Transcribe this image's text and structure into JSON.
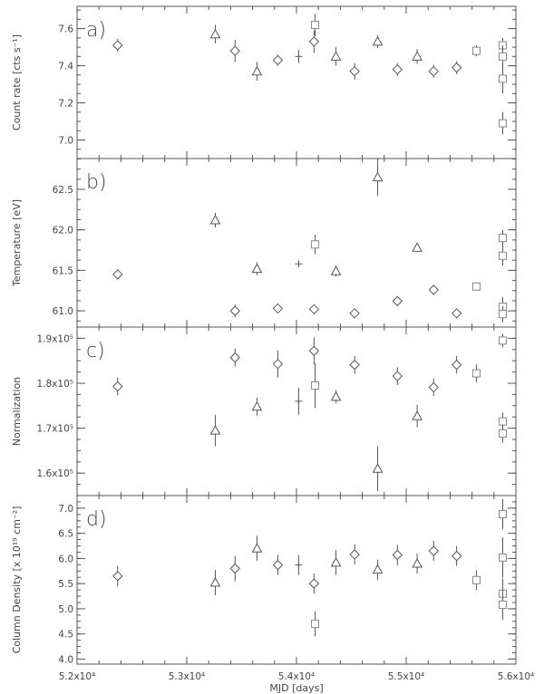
{
  "chart_data": [
    {
      "type": "scatter",
      "panel_label": "a)",
      "ylabel": "Count rate [cts s⁻¹]",
      "ylim": [
        6.9,
        7.72
      ],
      "yticks": [
        7.0,
        7.2,
        7.4,
        7.6
      ],
      "ytick_labels": [
        "7.0",
        "7.2",
        "7.4",
        "7.6"
      ],
      "series": [
        {
          "marker": "diamond",
          "points": [
            {
              "x": 52370,
              "y": 7.51,
              "err": 0.035
            },
            {
              "x": 53440,
              "y": 7.48,
              "err": 0.06
            },
            {
              "x": 53830,
              "y": 7.43,
              "err": 0.03
            },
            {
              "x": 54160,
              "y": 7.53,
              "err": 0.06
            },
            {
              "x": 54530,
              "y": 7.37,
              "err": 0.045
            },
            {
              "x": 54920,
              "y": 7.38,
              "err": 0.035
            },
            {
              "x": 55250,
              "y": 7.37,
              "err": 0.035
            },
            {
              "x": 55460,
              "y": 7.39,
              "err": 0.035
            }
          ]
        },
        {
          "marker": "triangle",
          "points": [
            {
              "x": 53260,
              "y": 7.57,
              "err": 0.05
            },
            {
              "x": 53640,
              "y": 7.37,
              "err": 0.05
            },
            {
              "x": 54360,
              "y": 7.45,
              "err": 0.05
            },
            {
              "x": 54740,
              "y": 7.53,
              "err": 0.035
            },
            {
              "x": 55100,
              "y": 7.45,
              "err": 0.04
            }
          ]
        },
        {
          "marker": "plus",
          "points": [
            {
              "x": 54020,
              "y": 7.45,
              "err": 0.035
            }
          ]
        },
        {
          "marker": "square",
          "points": [
            {
              "x": 54170,
              "y": 7.62,
              "err": 0.06
            },
            {
              "x": 55640,
              "y": 7.48,
              "err": 0.03
            },
            {
              "x": 55880,
              "y": 7.51,
              "err": 0.04
            },
            {
              "x": 55880,
              "y": 7.45,
              "err": 0.06
            },
            {
              "x": 55880,
              "y": 7.33,
              "err": 0.08
            },
            {
              "x": 55880,
              "y": 7.09,
              "err": 0.06
            }
          ]
        }
      ]
    },
    {
      "type": "scatter",
      "panel_label": "b)",
      "ylabel": "Temperature [eV]",
      "ylim": [
        60.8,
        62.88
      ],
      "yticks": [
        61.0,
        61.5,
        62.0,
        62.5
      ],
      "ytick_labels": [
        "61.0",
        "61.5",
        "62.0",
        "62.5"
      ],
      "series": [
        {
          "marker": "diamond",
          "points": [
            {
              "x": 52370,
              "y": 61.45,
              "err": 0.04
            },
            {
              "x": 53440,
              "y": 61.0,
              "err": 0.08
            },
            {
              "x": 53830,
              "y": 61.03,
              "err": 0.05
            },
            {
              "x": 54160,
              "y": 61.02,
              "err": 0.05
            },
            {
              "x": 54530,
              "y": 60.97,
              "err": 0.05
            },
            {
              "x": 54920,
              "y": 61.12,
              "err": 0.04
            },
            {
              "x": 55250,
              "y": 61.26,
              "err": 0.03
            },
            {
              "x": 55460,
              "y": 60.97,
              "err": 0.04
            }
          ]
        },
        {
          "marker": "triangle",
          "points": [
            {
              "x": 53260,
              "y": 62.12,
              "err": 0.09
            },
            {
              "x": 53640,
              "y": 61.52,
              "err": 0.08
            },
            {
              "x": 54360,
              "y": 61.49,
              "err": 0.07
            },
            {
              "x": 54740,
              "y": 62.65,
              "err": 0.23
            },
            {
              "x": 55100,
              "y": 61.78,
              "err": 0.05
            }
          ]
        },
        {
          "marker": "plus",
          "points": [
            {
              "x": 54020,
              "y": 61.58,
              "err": 0.04
            }
          ]
        },
        {
          "marker": "square",
          "points": [
            {
              "x": 54170,
              "y": 61.82,
              "err": 0.12
            },
            {
              "x": 55640,
              "y": 61.3,
              "err": 0.05
            },
            {
              "x": 55880,
              "y": 61.9,
              "err": 0.1
            },
            {
              "x": 55880,
              "y": 61.68,
              "err": 0.12
            },
            {
              "x": 55880,
              "y": 61.05,
              "err": 0.12
            },
            {
              "x": 55880,
              "y": 60.96,
              "err": 0.1
            }
          ]
        }
      ]
    },
    {
      "type": "scatter",
      "panel_label": "c)",
      "ylabel": "Normalization",
      "ylim": [
        1.55,
        1.925
      ],
      "yticks": [
        1.6,
        1.7,
        1.8,
        1.9
      ],
      "ytick_labels": [
        "1.6x10⁵",
        "1.7x10⁵",
        "1.8x10⁵",
        "1.9x10⁵"
      ],
      "series": [
        {
          "marker": "diamond",
          "points": [
            {
              "x": 52370,
              "y": 1.793,
              "err": 0.02
            },
            {
              "x": 53440,
              "y": 1.857,
              "err": 0.02
            },
            {
              "x": 53830,
              "y": 1.843,
              "err": 0.03
            },
            {
              "x": 54160,
              "y": 1.872,
              "err": 0.03
            },
            {
              "x": 54530,
              "y": 1.841,
              "err": 0.02
            },
            {
              "x": 54920,
              "y": 1.816,
              "err": 0.02
            },
            {
              "x": 55250,
              "y": 1.791,
              "err": 0.02
            },
            {
              "x": 55460,
              "y": 1.841,
              "err": 0.02
            }
          ]
        },
        {
          "marker": "triangle",
          "points": [
            {
              "x": 53260,
              "y": 1.695,
              "err": 0.035
            },
            {
              "x": 53640,
              "y": 1.748,
              "err": 0.02
            },
            {
              "x": 54360,
              "y": 1.77,
              "err": 0.015
            },
            {
              "x": 54740,
              "y": 1.61,
              "err": 0.05
            },
            {
              "x": 55100,
              "y": 1.727,
              "err": 0.025
            }
          ]
        },
        {
          "marker": "plus",
          "points": [
            {
              "x": 54020,
              "y": 1.76,
              "err": 0.03
            }
          ]
        },
        {
          "marker": "square",
          "points": [
            {
              "x": 54170,
              "y": 1.795,
              "err": 0.05
            },
            {
              "x": 55640,
              "y": 1.822,
              "err": 0.02
            },
            {
              "x": 55880,
              "y": 1.895,
              "err": 0.015
            },
            {
              "x": 55880,
              "y": 1.715,
              "err": 0.02
            },
            {
              "x": 55880,
              "y": 1.688,
              "err": 0.02
            }
          ]
        }
      ]
    },
    {
      "type": "scatter",
      "panel_label": "d)",
      "ylabel": "Column Density [x 10¹⁹ cm⁻²]",
      "xlabel": "MJD [days]",
      "ylim": [
        3.9,
        7.25
      ],
      "yticks": [
        4.0,
        4.5,
        5.0,
        5.5,
        6.0,
        6.5,
        7.0
      ],
      "ytick_labels": [
        "4.0",
        "4.5",
        "5.0",
        "5.5",
        "6.0",
        "6.5",
        "7.0"
      ],
      "xlim": [
        52000,
        56000
      ],
      "xticks": [
        52000,
        53000,
        54000,
        55000,
        56000
      ],
      "xtick_labels": [
        "5.2x10⁴",
        "5.3x10⁴",
        "5.4x10⁴",
        "5.5x10⁴",
        "5.6x10⁴"
      ],
      "series": [
        {
          "marker": "diamond",
          "points": [
            {
              "x": 52370,
              "y": 5.65,
              "err": 0.2
            },
            {
              "x": 53440,
              "y": 5.8,
              "err": 0.25
            },
            {
              "x": 53830,
              "y": 5.87,
              "err": 0.2
            },
            {
              "x": 54160,
              "y": 5.5,
              "err": 0.2
            },
            {
              "x": 54530,
              "y": 6.08,
              "err": 0.2
            },
            {
              "x": 54920,
              "y": 6.07,
              "err": 0.2
            },
            {
              "x": 55250,
              "y": 6.15,
              "err": 0.2
            },
            {
              "x": 55460,
              "y": 6.05,
              "err": 0.2
            }
          ]
        },
        {
          "marker": "triangle",
          "points": [
            {
              "x": 53260,
              "y": 5.52,
              "err": 0.25
            },
            {
              "x": 53640,
              "y": 6.2,
              "err": 0.25
            },
            {
              "x": 54360,
              "y": 5.92,
              "err": 0.25
            },
            {
              "x": 54740,
              "y": 5.78,
              "err": 0.2
            },
            {
              "x": 55100,
              "y": 5.9,
              "err": 0.2
            }
          ]
        },
        {
          "marker": "plus",
          "points": [
            {
              "x": 54020,
              "y": 5.87,
              "err": 0.2
            }
          ]
        },
        {
          "marker": "square",
          "points": [
            {
              "x": 54170,
              "y": 4.7,
              "err": 0.25
            },
            {
              "x": 55640,
              "y": 5.57,
              "err": 0.2
            },
            {
              "x": 55880,
              "y": 6.88,
              "err": 0.3
            },
            {
              "x": 55880,
              "y": 6.02,
              "err": 0.4
            },
            {
              "x": 55880,
              "y": 5.3,
              "err": 0.3
            },
            {
              "x": 55880,
              "y": 5.08,
              "err": 0.3
            }
          ]
        }
      ]
    }
  ]
}
